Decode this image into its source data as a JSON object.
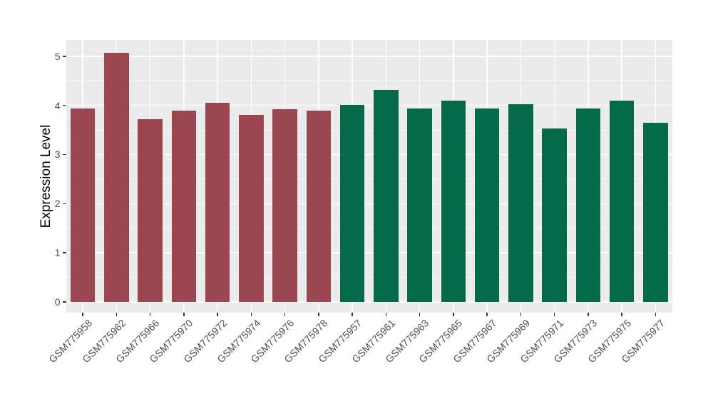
{
  "chart_data": {
    "type": "bar",
    "title": "",
    "xlabel": "",
    "ylabel": "Expression Level",
    "categories": [
      "GSM775958",
      "GSM775962",
      "GSM775966",
      "GSM775970",
      "GSM775972",
      "GSM775974",
      "GSM775976",
      "GSM775978",
      "GSM775957",
      "GSM775961",
      "GSM775963",
      "GSM775965",
      "GSM775967",
      "GSM775969",
      "GSM775971",
      "GSM775973",
      "GSM775975",
      "GSM775977"
    ],
    "values": [
      3.93,
      5.07,
      3.72,
      3.89,
      4.05,
      3.8,
      3.92,
      3.89,
      4.01,
      4.32,
      3.93,
      4.1,
      3.94,
      4.02,
      3.53,
      3.93,
      4.1,
      3.65
    ],
    "bar_colors": [
      "#9B4651",
      "#9B4651",
      "#9B4651",
      "#9B4651",
      "#9B4651",
      "#9B4651",
      "#9B4651",
      "#9B4651",
      "#046A4A",
      "#046A4A",
      "#046A4A",
      "#046A4A",
      "#046A4A",
      "#046A4A",
      "#046A4A",
      "#046A4A",
      "#046A4A",
      "#046A4A"
    ],
    "color_groups": [
      {
        "name": "group-1",
        "color": "#9B4651",
        "count": 8
      },
      {
        "name": "group-2",
        "color": "#046A4A",
        "count": 10
      }
    ],
    "ylim": [
      0,
      5
    ],
    "y_ticks": [
      0,
      1,
      2,
      3,
      4,
      5
    ],
    "y_minor_ticks": [
      0.5,
      1.5,
      2.5,
      3.5,
      4.5
    ],
    "panel_value_range": [
      -0.21,
      5.33
    ],
    "grid": true,
    "legend": "none",
    "x_label_angle_deg": 45,
    "colors": {
      "figure_background": "#FFFFFF",
      "panel_background": "#EBEBEB",
      "grid_major": "#FFFFFF",
      "grid_minor": "#F8F8F8",
      "tick_mark": "#333333",
      "tick_text": "#4D4D4D",
      "axis_title": "#000000"
    }
  }
}
